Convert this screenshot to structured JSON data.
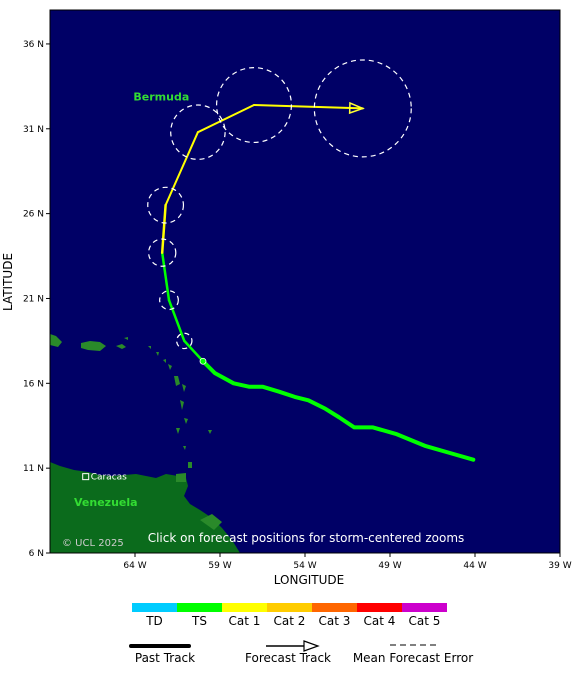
{
  "map": {
    "axes": {
      "xlabel": "LONGITUDE",
      "ylabel": "LATITUDE",
      "x_range_w": [
        69,
        39
      ],
      "y_range_n": [
        6,
        38
      ],
      "x_ticks": [
        {
          "value": 64,
          "label": "64 W"
        },
        {
          "value": 59,
          "label": "59 W"
        },
        {
          "value": 54,
          "label": "54 W"
        },
        {
          "value": 49,
          "label": "49 W"
        },
        {
          "value": 44,
          "label": "44 W"
        },
        {
          "value": 39,
          "label": "39 W"
        }
      ],
      "y_ticks": [
        {
          "value": 36,
          "label": "36 N"
        },
        {
          "value": 31,
          "label": "31 N"
        },
        {
          "value": 26,
          "label": "26 N"
        },
        {
          "value": 21,
          "label": "21 N"
        },
        {
          "value": 16,
          "label": "16 N"
        },
        {
          "value": 11,
          "label": "11 N"
        },
        {
          "value": 6,
          "label": "6 N"
        }
      ]
    },
    "labels": {
      "bermuda": "Bermuda",
      "venezuela": "Venezuela",
      "caracas": "Caracas",
      "notice": "Click on forecast positions for storm-centered zooms",
      "credit": "© UCL 2025"
    },
    "colors": {
      "ocean": "#000066",
      "land": "#0b6b1c",
      "island": "#2a8a2a",
      "past_track": "#00ff00",
      "forecast_track": "#ffff33",
      "error_circle": "#ffffff"
    },
    "past_track": [
      {
        "lon": 44.1,
        "lat": 11.5
      },
      {
        "lon": 45.5,
        "lat": 11.9
      },
      {
        "lon": 46.9,
        "lat": 12.3
      },
      {
        "lon": 48.6,
        "lat": 13.0
      },
      {
        "lon": 50.0,
        "lat": 13.4
      },
      {
        "lon": 51.1,
        "lat": 13.4
      },
      {
        "lon": 52.0,
        "lat": 14.0
      },
      {
        "lon": 52.8,
        "lat": 14.5
      },
      {
        "lon": 53.8,
        "lat": 15.0
      },
      {
        "lon": 54.6,
        "lat": 15.2
      },
      {
        "lon": 55.5,
        "lat": 15.5
      },
      {
        "lon": 56.5,
        "lat": 15.8
      },
      {
        "lon": 57.3,
        "lat": 15.8
      },
      {
        "lon": 58.2,
        "lat": 16.0
      },
      {
        "lon": 59.3,
        "lat": 16.6
      },
      {
        "lon": 60.0,
        "lat": 17.3
      }
    ],
    "forecast_positions": [
      {
        "lon": 60.0,
        "lat": 17.3,
        "stage": "TS",
        "error_radius_deg": 0
      },
      {
        "lon": 61.1,
        "lat": 18.5,
        "stage": "TS",
        "error_radius_deg": 0.45
      },
      {
        "lon": 62.0,
        "lat": 20.9,
        "stage": "TS",
        "error_radius_deg": 0.55
      },
      {
        "lon": 62.4,
        "lat": 23.7,
        "stage": "TS",
        "error_radius_deg": 0.8
      },
      {
        "lon": 62.2,
        "lat": 26.5,
        "stage": "Cat 1",
        "error_radius_deg": 1.05
      },
      {
        "lon": 60.3,
        "lat": 30.8,
        "stage": "Cat 1",
        "error_radius_deg": 1.6
      },
      {
        "lon": 57.0,
        "lat": 32.4,
        "stage": "Cat 1",
        "error_radius_deg": 2.2
      },
      {
        "lon": 50.6,
        "lat": 32.2,
        "stage": "Cat 1",
        "error_radius_deg": 2.85
      }
    ],
    "places": {
      "bermuda": {
        "lon": 64.8,
        "lat": 32.3
      },
      "caracas": {
        "lon": 66.9,
        "lat": 10.5
      }
    }
  },
  "legend": {
    "scale": [
      {
        "label": "TD",
        "color": "#00ccff"
      },
      {
        "label": "TS",
        "color": "#00ff00"
      },
      {
        "label": "Cat 1",
        "color": "#ffff00"
      },
      {
        "label": "Cat 2",
        "color": "#ffcc00"
      },
      {
        "label": "Cat 3",
        "color": "#ff6600"
      },
      {
        "label": "Cat 4",
        "color": "#ff0000"
      },
      {
        "label": "Cat 5",
        "color": "#cc00cc"
      }
    ],
    "past_track": "Past Track",
    "forecast_track": "Forecast Track",
    "mean_error": "Mean Forecast Error"
  }
}
